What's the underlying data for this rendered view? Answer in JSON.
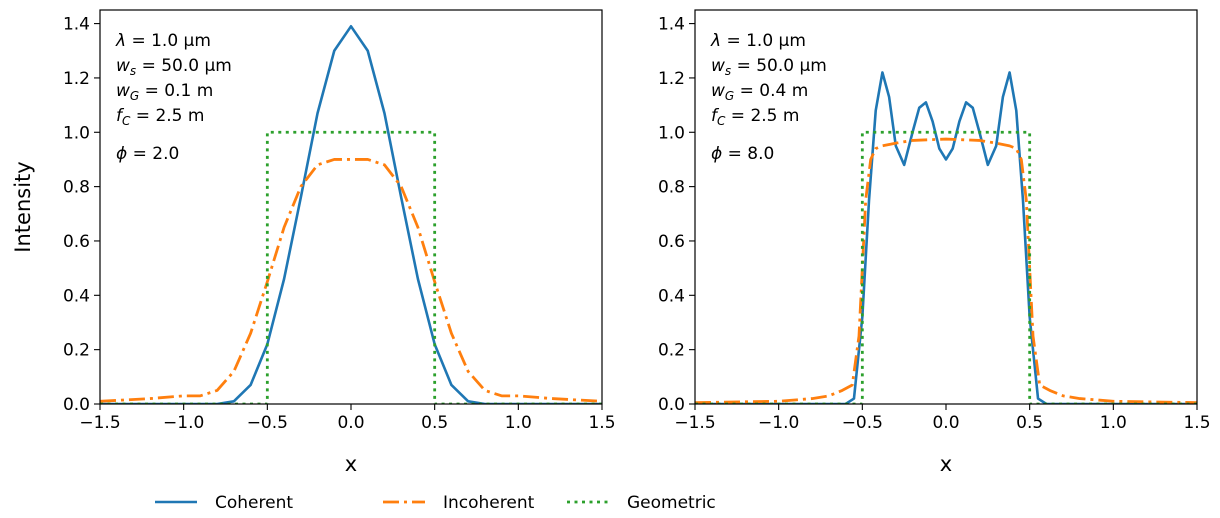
{
  "chart_data": [
    {
      "type": "line",
      "xlabel": "x",
      "ylabel": "Intensity",
      "xlim": [
        -1.5,
        1.5
      ],
      "ylim": [
        0.0,
        1.45
      ],
      "xticks": [
        "−1.5",
        "−1.0",
        "−0.5",
        "0.0",
        "0.5",
        "1.0",
        "1.5"
      ],
      "yticks": [
        "0.0",
        "0.2",
        "0.4",
        "0.6",
        "0.8",
        "1.0",
        "1.2",
        "1.4"
      ],
      "annotations": [
        "λ = 1.0 μm",
        "w_s = 50.0 μm",
        "w_G = 0.1 m",
        "f_C = 2.5 m",
        "ϕ = 2.0"
      ],
      "series": [
        {
          "name": "Coherent",
          "color": "#1f77b4",
          "style": "solid",
          "x": [
            -1.5,
            -1.0,
            -0.8,
            -0.7,
            -0.6,
            -0.5,
            -0.4,
            -0.3,
            -0.2,
            -0.1,
            0.0,
            0.1,
            0.2,
            0.3,
            0.4,
            0.5,
            0.6,
            0.7,
            0.8,
            1.0,
            1.5
          ],
          "y": [
            0.0,
            0.0,
            0.0,
            0.01,
            0.07,
            0.22,
            0.46,
            0.76,
            1.07,
            1.3,
            1.39,
            1.3,
            1.07,
            0.76,
            0.46,
            0.22,
            0.07,
            0.01,
            0.0,
            0.0,
            0.0
          ]
        },
        {
          "name": "Incoherent",
          "color": "#ff7f0e",
          "style": "dashdot",
          "x": [
            -1.5,
            -1.2,
            -1.0,
            -0.9,
            -0.8,
            -0.7,
            -0.6,
            -0.5,
            -0.4,
            -0.3,
            -0.2,
            -0.1,
            0.0,
            0.1,
            0.2,
            0.3,
            0.4,
            0.5,
            0.6,
            0.7,
            0.8,
            0.9,
            1.0,
            1.2,
            1.5
          ],
          "y": [
            0.01,
            0.02,
            0.03,
            0.03,
            0.05,
            0.12,
            0.26,
            0.45,
            0.65,
            0.8,
            0.88,
            0.9,
            0.9,
            0.9,
            0.88,
            0.8,
            0.65,
            0.45,
            0.26,
            0.12,
            0.05,
            0.03,
            0.03,
            0.02,
            0.01
          ]
        },
        {
          "name": "Geometric",
          "color": "#2ca02c",
          "style": "dotted",
          "x": [
            -1.5,
            -0.5,
            -0.5,
            0.5,
            0.5,
            1.5
          ],
          "y": [
            0.0,
            0.0,
            1.0,
            1.0,
            0.0,
            0.0
          ]
        }
      ]
    },
    {
      "type": "line",
      "xlabel": "x",
      "ylabel": "",
      "xlim": [
        -1.5,
        1.5
      ],
      "ylim": [
        0.0,
        1.45
      ],
      "xticks": [
        "−1.5",
        "−1.0",
        "−0.5",
        "0.0",
        "0.5",
        "1.0",
        "1.5"
      ],
      "yticks": [
        "0.0",
        "0.2",
        "0.4",
        "0.6",
        "0.8",
        "1.0",
        "1.2",
        "1.4"
      ],
      "annotations": [
        "λ = 1.0 μm",
        "w_s = 50.0 μm",
        "w_G = 0.4 m",
        "f_C = 2.5 m",
        "ϕ = 8.0"
      ],
      "series": [
        {
          "name": "Coherent",
          "color": "#1f77b4",
          "style": "solid",
          "x": [
            -1.5,
            -0.65,
            -0.6,
            -0.55,
            -0.5,
            -0.46,
            -0.42,
            -0.38,
            -0.34,
            -0.3,
            -0.25,
            -0.2,
            -0.16,
            -0.12,
            -0.08,
            -0.04,
            0.0,
            0.04,
            0.08,
            0.12,
            0.16,
            0.2,
            0.25,
            0.3,
            0.34,
            0.38,
            0.42,
            0.46,
            0.5,
            0.55,
            0.6,
            0.65,
            1.5
          ],
          "y": [
            0.0,
            0.0,
            0.0,
            0.02,
            0.32,
            0.75,
            1.08,
            1.22,
            1.13,
            0.95,
            0.88,
            1.0,
            1.09,
            1.11,
            1.04,
            0.94,
            0.9,
            0.94,
            1.04,
            1.11,
            1.09,
            1.0,
            0.88,
            0.95,
            1.13,
            1.22,
            1.08,
            0.75,
            0.32,
            0.02,
            0.0,
            0.0,
            0.0
          ]
        },
        {
          "name": "Incoherent",
          "color": "#ff7f0e",
          "style": "dashdot",
          "x": [
            -1.5,
            -1.0,
            -0.8,
            -0.7,
            -0.62,
            -0.56,
            -0.52,
            -0.5,
            -0.48,
            -0.45,
            -0.42,
            -0.38,
            -0.3,
            -0.2,
            0.0,
            0.2,
            0.3,
            0.38,
            0.42,
            0.45,
            0.48,
            0.5,
            0.52,
            0.56,
            0.62,
            0.7,
            0.8,
            1.0,
            1.5
          ],
          "y": [
            0.005,
            0.01,
            0.02,
            0.03,
            0.05,
            0.07,
            0.25,
            0.5,
            0.75,
            0.9,
            0.94,
            0.95,
            0.96,
            0.97,
            0.975,
            0.97,
            0.96,
            0.95,
            0.94,
            0.9,
            0.75,
            0.5,
            0.25,
            0.07,
            0.05,
            0.03,
            0.02,
            0.01,
            0.005
          ]
        },
        {
          "name": "Geometric",
          "color": "#2ca02c",
          "style": "dotted",
          "x": [
            -1.5,
            -0.5,
            -0.5,
            0.5,
            0.5,
            1.5
          ],
          "y": [
            0.0,
            0.0,
            1.0,
            1.0,
            0.0,
            0.0
          ]
        }
      ]
    }
  ],
  "legend": [
    {
      "label": "Coherent",
      "color": "#1f77b4",
      "style": "solid"
    },
    {
      "label": "Incoherent",
      "color": "#ff7f0e",
      "style": "dashdot"
    },
    {
      "label": "Geometric",
      "color": "#2ca02c",
      "style": "dotted"
    }
  ]
}
